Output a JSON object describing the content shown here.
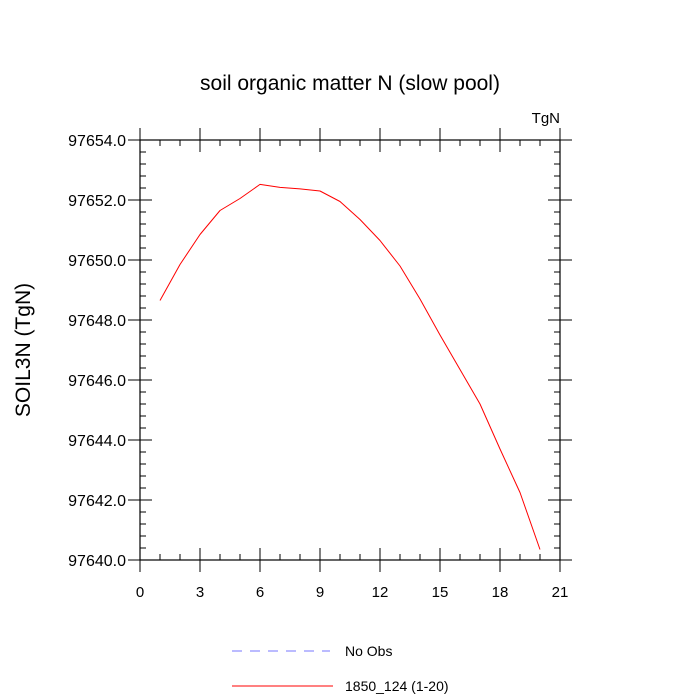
{
  "chart_data": {
    "type": "line",
    "title": "soil organic matter N (slow pool)",
    "units_label": "TgN",
    "xlabel": "",
    "ylabel": "SOIL3N  (TgN)",
    "xlim": [
      0,
      21
    ],
    "ylim": [
      97640.0,
      97654.0
    ],
    "x_ticks": [
      0,
      3,
      6,
      9,
      12,
      15,
      18,
      21
    ],
    "x_tick_labels": [
      "0",
      "3",
      "6",
      "9",
      "12",
      "15",
      "18",
      "21"
    ],
    "y_ticks": [
      97640.0,
      97642.0,
      97644.0,
      97646.0,
      97648.0,
      97650.0,
      97652.0,
      97654.0
    ],
    "y_tick_labels": [
      "97640.0",
      "97642.0",
      "97644.0",
      "97646.0",
      "97648.0",
      "97650.0",
      "97652.0",
      "97654.0"
    ],
    "grid": false,
    "series": [
      {
        "name": "1850_124 (1-20)",
        "color": "#ff0000",
        "dash": "solid",
        "x": [
          1,
          2,
          3,
          4,
          5,
          6,
          7,
          8,
          9,
          10,
          11,
          12,
          13,
          14,
          15,
          16,
          17,
          18,
          19,
          20
        ],
        "values": [
          97648.65,
          97649.85,
          97650.85,
          97651.65,
          97652.05,
          97652.52,
          97652.42,
          97652.37,
          97652.3,
          97651.95,
          97651.35,
          97650.65,
          97649.8,
          97648.7,
          97647.5,
          97646.35,
          97645.2,
          97643.7,
          97642.25,
          97640.35
        ]
      }
    ],
    "legend": {
      "placement": "bottom",
      "entries": [
        {
          "label": "No Obs",
          "color": "#7777ff",
          "dash": "dashed"
        },
        {
          "label": "1850_124 (1-20)",
          "color": "#ff0000",
          "dash": "solid"
        }
      ]
    }
  }
}
